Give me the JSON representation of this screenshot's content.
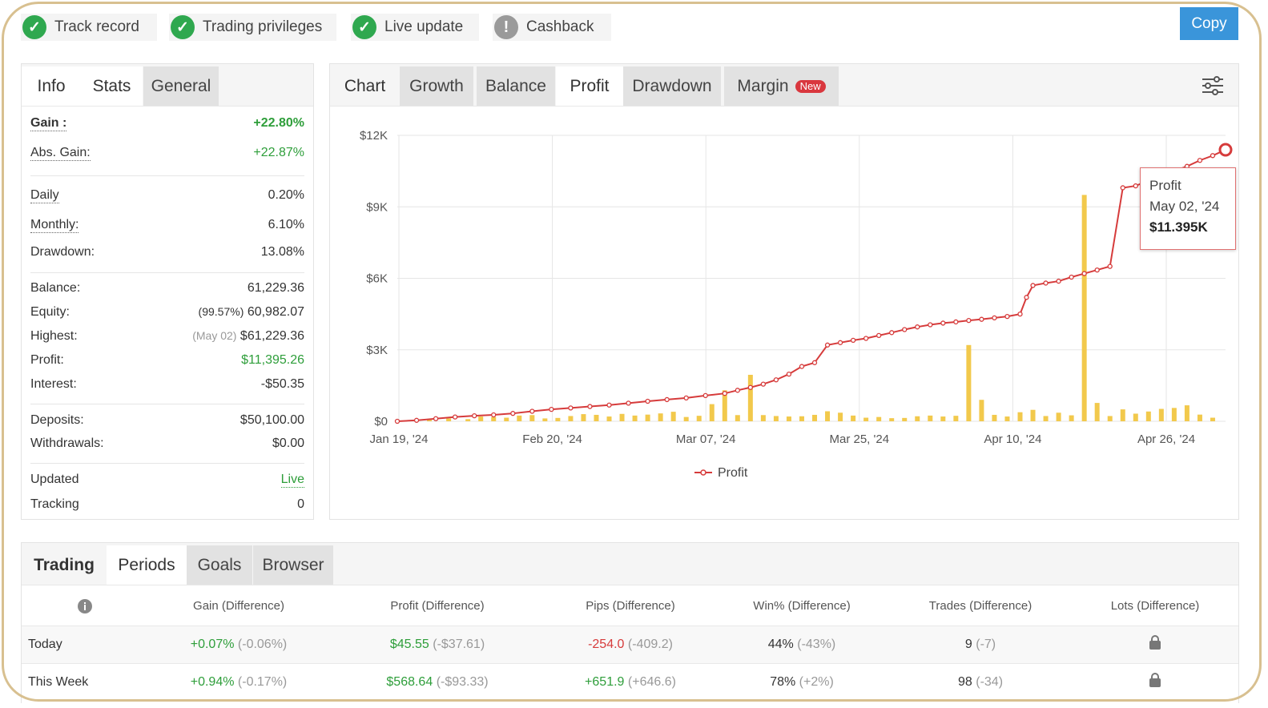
{
  "badges": [
    {
      "label": "Track record",
      "icon": "check-icon",
      "status": "ok"
    },
    {
      "label": "Trading privileges",
      "icon": "check-icon",
      "status": "ok"
    },
    {
      "label": "Live update",
      "icon": "check-icon",
      "status": "ok"
    },
    {
      "label": "Cashback",
      "icon": "exclamation-icon",
      "status": "warn"
    }
  ],
  "copy_button": "Copy",
  "info_tabs": [
    "Info",
    "Stats",
    "General"
  ],
  "info": {
    "gain_label": "Gain :",
    "gain": "+22.80%",
    "abs_gain_label": "Abs. Gain:",
    "abs_gain": "+22.87%",
    "daily_label": "Daily",
    "daily": "0.20%",
    "monthly_label": "Monthly:",
    "monthly": "6.10%",
    "drawdown_label": "Drawdown:",
    "drawdown": "13.08%",
    "balance_label": "Balance:",
    "balance": "61,229.36",
    "equity_label": "Equity:",
    "equity_pct": "(99.57%)",
    "equity": "60,982.07",
    "highest_label": "Highest:",
    "highest_date": "(May 02)",
    "highest": "$61,229.36",
    "profit_label": "Profit:",
    "profit": "$11,395.26",
    "interest_label": "Interest:",
    "interest": "-$50.35",
    "deposits_label": "Deposits:",
    "deposits": "$50,100.00",
    "withdrawals_label": "Withdrawals:",
    "withdrawals": "$0.00",
    "updated_label": "Updated",
    "updated": "Live",
    "tracking_label": "Tracking",
    "tracking": "0"
  },
  "chart_tabs": [
    "Chart",
    "Growth",
    "Balance",
    "Profit",
    "Drawdown",
    "Margin"
  ],
  "margin_new": "New",
  "tooltip": {
    "title": "Profit",
    "date": "May 02, '24",
    "value": "$11.395K"
  },
  "chart_data": {
    "type": "line",
    "title": "",
    "ylabel": "",
    "xlabel": "",
    "ylim": [
      0,
      12000
    ],
    "y_ticks": [
      "$0",
      "$3K",
      "$6K",
      "$9K",
      "$12K"
    ],
    "x_ticks": [
      "Jan 19, '24",
      "Feb 20, '24",
      "Mar 07, '24",
      "Mar 25, '24",
      "Apr 10, '24",
      "Apr 26, '24"
    ],
    "x_range_days": [
      0,
      110
    ],
    "legend": "bottom",
    "grid": true,
    "series": [
      {
        "name": "Profit",
        "type": "line",
        "color": "#d63b3b",
        "points": [
          [
            0,
            0
          ],
          [
            3,
            40
          ],
          [
            6,
            110
          ],
          [
            9,
            180
          ],
          [
            12,
            230
          ],
          [
            15,
            270
          ],
          [
            18,
            330
          ],
          [
            21,
            420
          ],
          [
            24,
            500
          ],
          [
            27,
            560
          ],
          [
            30,
            620
          ],
          [
            33,
            680
          ],
          [
            36,
            760
          ],
          [
            39,
            840
          ],
          [
            42,
            910
          ],
          [
            45,
            980
          ],
          [
            48,
            1080
          ],
          [
            51,
            1170
          ],
          [
            53,
            1300
          ],
          [
            55,
            1420
          ],
          [
            57,
            1560
          ],
          [
            59,
            1740
          ],
          [
            61,
            1980
          ],
          [
            63,
            2300
          ],
          [
            65,
            2460
          ],
          [
            67,
            3200
          ],
          [
            69,
            3300
          ],
          [
            71,
            3400
          ],
          [
            73,
            3480
          ],
          [
            75,
            3600
          ],
          [
            77,
            3720
          ],
          [
            79,
            3850
          ],
          [
            81,
            3960
          ],
          [
            83,
            4050
          ],
          [
            85,
            4120
          ],
          [
            87,
            4170
          ],
          [
            89,
            4230
          ],
          [
            91,
            4280
          ],
          [
            93,
            4340
          ],
          [
            95,
            4400
          ],
          [
            97,
            4500
          ],
          [
            98,
            5200
          ],
          [
            99,
            5700
          ],
          [
            101,
            5800
          ],
          [
            103,
            5880
          ],
          [
            105,
            6050
          ],
          [
            107,
            6200
          ],
          [
            109,
            6350
          ],
          [
            111,
            6500
          ],
          [
            113,
            9800
          ],
          [
            115,
            9880
          ],
          [
            117,
            10100
          ],
          [
            119,
            10300
          ],
          [
            121,
            10500
          ],
          [
            123,
            10700
          ],
          [
            125,
            10950
          ],
          [
            127,
            11150
          ],
          [
            129,
            11395
          ]
        ]
      },
      {
        "name": "",
        "type": "bar",
        "color": "#f2c94c",
        "points": [
          [
            2,
            50
          ],
          [
            5,
            60
          ],
          [
            8,
            120
          ],
          [
            11,
            90
          ],
          [
            13,
            200
          ],
          [
            15,
            180
          ],
          [
            17,
            150
          ],
          [
            19,
            240
          ],
          [
            21,
            260
          ],
          [
            23,
            120
          ],
          [
            25,
            140
          ],
          [
            27,
            220
          ],
          [
            29,
            300
          ],
          [
            31,
            270
          ],
          [
            33,
            200
          ],
          [
            35,
            310
          ],
          [
            37,
            240
          ],
          [
            39,
            280
          ],
          [
            41,
            330
          ],
          [
            43,
            400
          ],
          [
            45,
            180
          ],
          [
            47,
            230
          ],
          [
            49,
            720
          ],
          [
            51,
            1300
          ],
          [
            53,
            260
          ],
          [
            55,
            1950
          ],
          [
            57,
            260
          ],
          [
            59,
            220
          ],
          [
            61,
            200
          ],
          [
            63,
            210
          ],
          [
            65,
            270
          ],
          [
            67,
            420
          ],
          [
            69,
            360
          ],
          [
            71,
            240
          ],
          [
            73,
            150
          ],
          [
            75,
            180
          ],
          [
            77,
            130
          ],
          [
            79,
            140
          ],
          [
            81,
            210
          ],
          [
            83,
            240
          ],
          [
            85,
            200
          ],
          [
            87,
            230
          ],
          [
            89,
            3200
          ],
          [
            91,
            900
          ],
          [
            93,
            270
          ],
          [
            95,
            200
          ],
          [
            97,
            380
          ],
          [
            99,
            480
          ],
          [
            101,
            220
          ],
          [
            103,
            360
          ],
          [
            105,
            250
          ],
          [
            107,
            9500
          ],
          [
            109,
            770
          ],
          [
            111,
            220
          ],
          [
            113,
            500
          ],
          [
            115,
            320
          ],
          [
            117,
            410
          ],
          [
            119,
            520
          ],
          [
            121,
            560
          ],
          [
            123,
            670
          ],
          [
            125,
            280
          ],
          [
            127,
            150
          ]
        ]
      }
    ]
  },
  "trading_tabs": [
    "Trading",
    "Periods",
    "Goals",
    "Browser"
  ],
  "table": {
    "headers": [
      "Gain (Difference)",
      "Profit (Difference)",
      "Pips (Difference)",
      "Win% (Difference)",
      "Trades (Difference)",
      "Lots (Difference)"
    ],
    "rows": [
      {
        "period": "Today",
        "gain": "+0.07%",
        "gain_diff": "(-0.06%)",
        "profit": "$45.55",
        "profit_diff": "(-$37.61)",
        "pips": "-254.0",
        "pips_diff": "(-409.2)",
        "win": "44%",
        "win_diff": "(-43%)",
        "trades": "9",
        "trades_diff": "(-7)"
      },
      {
        "period": "This Week",
        "gain": "+0.94%",
        "gain_diff": "(-0.17%)",
        "profit": "$568.64",
        "profit_diff": "(-$93.33)",
        "pips": "+651.9",
        "pips_diff": "(+646.6)",
        "win": "78%",
        "win_diff": "(+2%)",
        "trades": "98",
        "trades_diff": "(-34)"
      }
    ]
  }
}
